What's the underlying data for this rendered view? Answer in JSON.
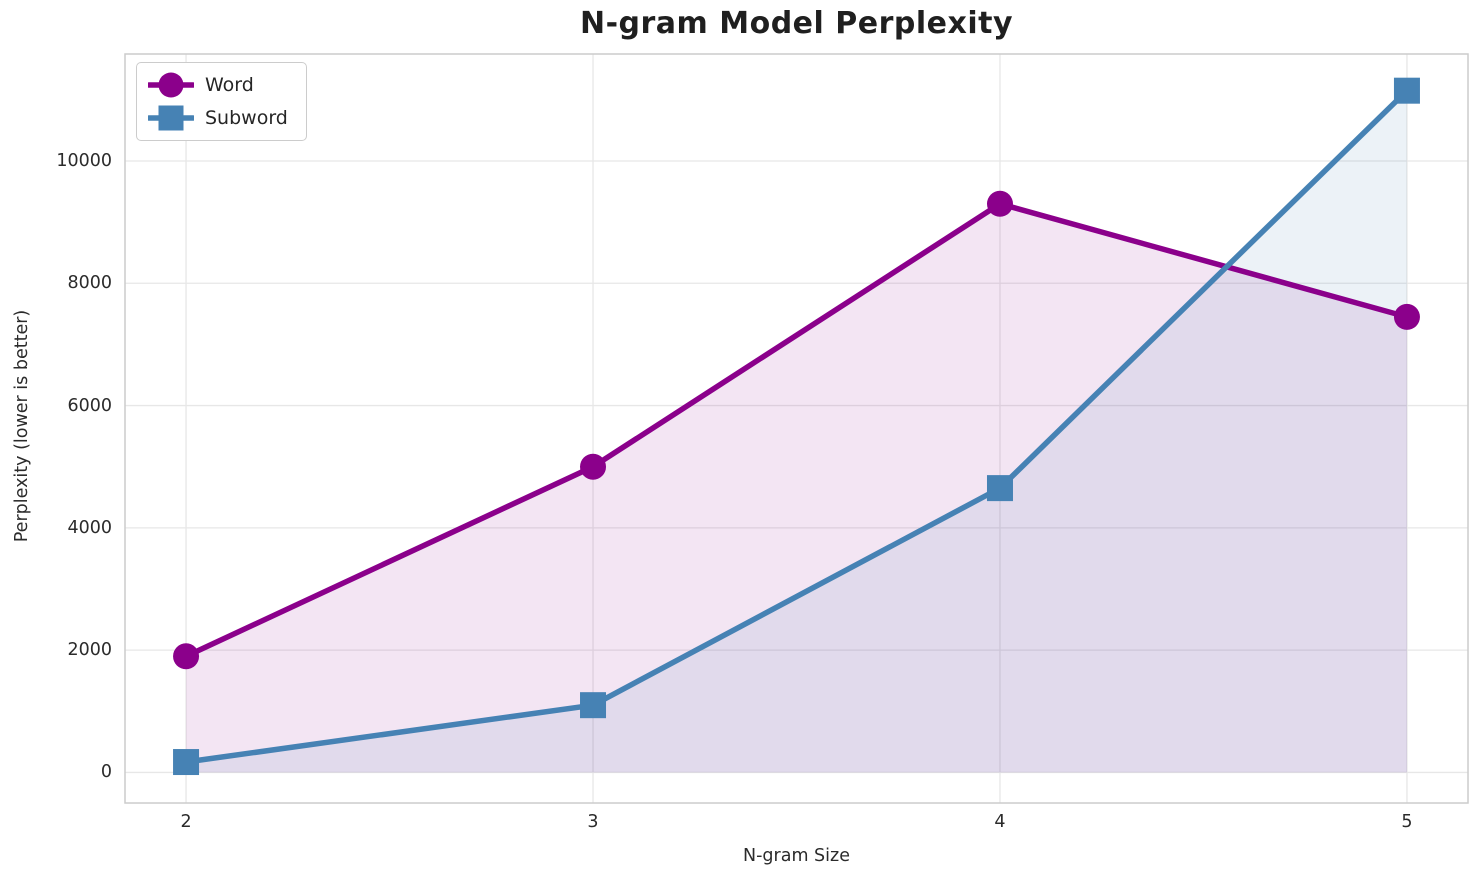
{
  "chart_data": {
    "type": "line",
    "title": "N-gram Model Perplexity",
    "xlabel": "N-gram Size",
    "ylabel": "Perplexity (lower is better)",
    "x": [
      2,
      3,
      4,
      5
    ],
    "series": [
      {
        "name": "Word",
        "values": [
          1900,
          5000,
          9300,
          7450
        ],
        "color": "#8B008B",
        "marker": "circle"
      },
      {
        "name": "Subword",
        "values": [
          170,
          1100,
          4650,
          11150
        ],
        "color": "#4682B4",
        "marker": "square"
      }
    ],
    "xticks": [
      2,
      3,
      4,
      5
    ],
    "yticks": [
      0,
      2000,
      4000,
      6000,
      8000,
      10000
    ],
    "xlim": [
      1.85,
      5.15
    ],
    "ylim": [
      -500,
      11750
    ],
    "grid": true,
    "area_fill_baseline": 0,
    "fill_opacity": 0.1,
    "line_width": 5.5,
    "marker_size": 26,
    "legend_position": "upper left",
    "legend_labels": [
      "Word",
      "Subword"
    ],
    "colors": {
      "grid": "#e7e7e7",
      "spine": "#cccccc",
      "text": "#262626",
      "background": "#ffffff"
    }
  }
}
